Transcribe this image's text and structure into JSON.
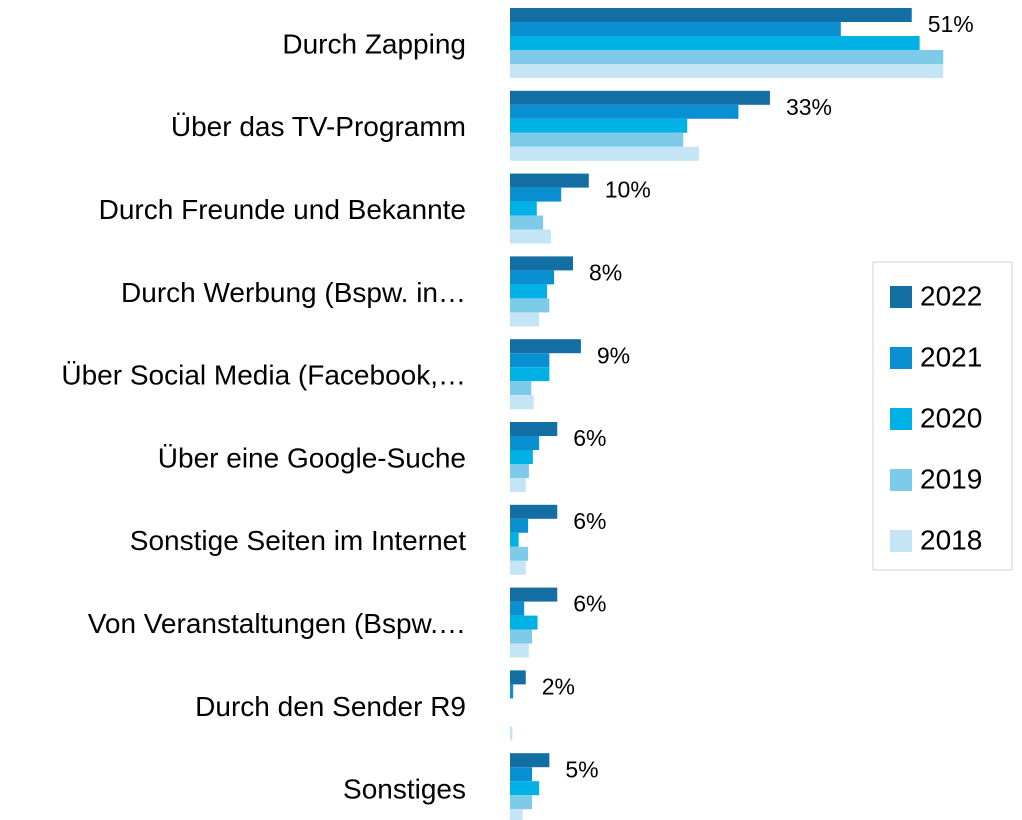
{
  "chart_data": {
    "type": "bar",
    "orientation": "horizontal",
    "categories": [
      "Durch Zapping",
      "Über das TV-Programm",
      "Durch Freunde und Bekannte",
      "Durch Werbung (Bspw. in…",
      "Über Social Media (Facebook,…",
      "Über eine Google-Suche",
      "Sonstige Seiten im Internet",
      "Von Veranstaltungen (Bspw.…",
      "Durch den Sender R9",
      "Sonstiges"
    ],
    "series": [
      {
        "name": "2022",
        "color": "#136fa3",
        "values": [
          51,
          33,
          10,
          8,
          9,
          6,
          6,
          6,
          2,
          5
        ],
        "value_labels": [
          "51%",
          "33%",
          "10%",
          "8%",
          "9%",
          "6%",
          "6%",
          "6%",
          "2%",
          "5%"
        ]
      },
      {
        "name": "2021",
        "color": "#0b8fd3",
        "values": [
          42,
          29,
          6.5,
          5.6,
          5,
          3.7,
          2.3,
          1.8,
          0.4,
          2.8
        ]
      },
      {
        "name": "2020",
        "color": "#00b1e6",
        "values": [
          52,
          22.5,
          3.4,
          4.7,
          5,
          2.9,
          1.1,
          3.5,
          0,
          3.7
        ]
      },
      {
        "name": "2019",
        "color": "#7ecae9",
        "values": [
          55,
          22,
          4.2,
          5,
          2.7,
          2.4,
          2.3,
          2.8,
          0,
          2.8
        ]
      },
      {
        "name": "2018",
        "color": "#c4e5f5",
        "values": [
          55,
          24,
          5.2,
          3.7,
          3,
          2,
          2,
          2.4,
          0.3,
          1.6
        ]
      }
    ],
    "xlim": [
      0,
      65
    ],
    "legend": "right"
  }
}
